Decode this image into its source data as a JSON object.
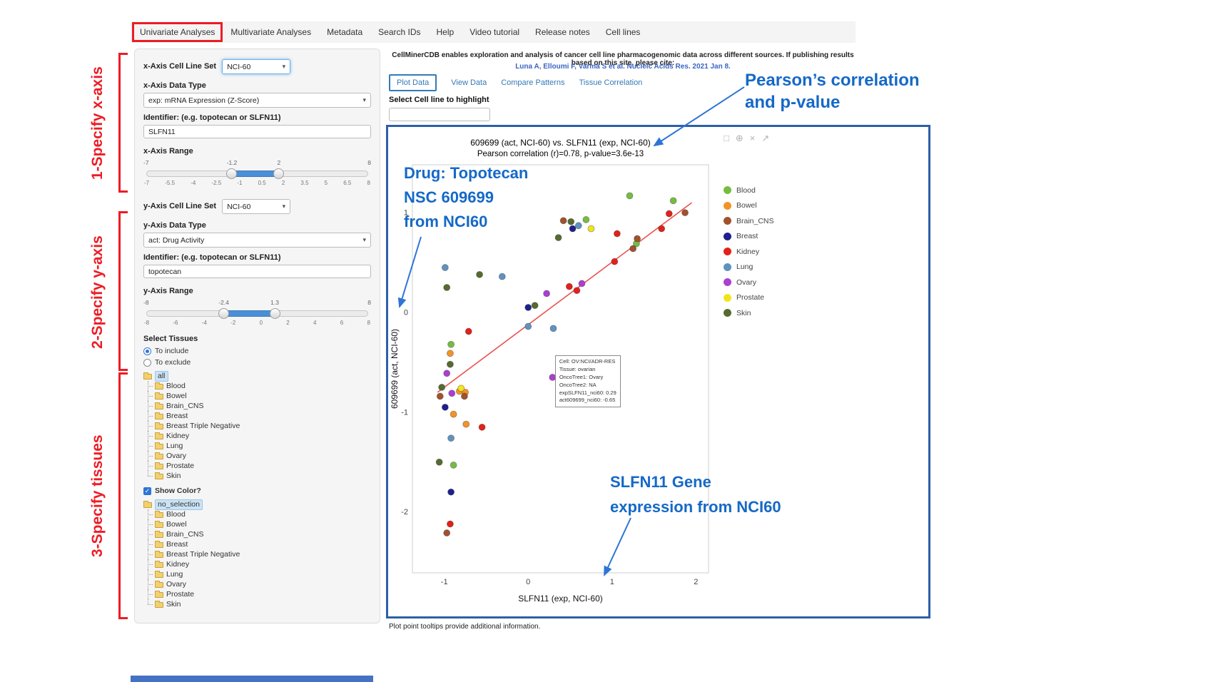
{
  "nav": {
    "tabs": [
      {
        "label": "Univariate Analyses",
        "active": true
      },
      {
        "label": "Multivariate Analyses",
        "active": false
      },
      {
        "label": "Metadata",
        "active": false
      },
      {
        "label": "Search IDs",
        "active": false
      },
      {
        "label": "Help",
        "active": false
      },
      {
        "label": "Video tutorial",
        "active": false
      },
      {
        "label": "Release notes",
        "active": false
      },
      {
        "label": "Cell lines",
        "active": false
      }
    ]
  },
  "side_annotations": {
    "step1": "1-Specify x-axis",
    "step2": "2-Specify y-axis",
    "step3": "3-Specify tissues"
  },
  "callouts": {
    "pearson_line1": "Pearson’s correlation",
    "pearson_line2": "and p-value",
    "drug_line1": "Drug: Topotecan",
    "drug_line2": "NSC 609699",
    "drug_line3": "from NCI60",
    "gene_line1": "SLFN11 Gene",
    "gene_line2": "expression from NCI60"
  },
  "sidebar": {
    "x_axis": {
      "set_label": "x-Axis Cell Line Set",
      "set_value": "NCI-60",
      "type_label": "x-Axis Data Type",
      "type_value": "exp: mRNA Expression (Z-Score)",
      "id_label": "Identifier: (e.g. topotecan or SLFN11)",
      "id_value": "SLFN11",
      "range_label": "x-Axis Range",
      "range": {
        "min": -7,
        "max": 8,
        "from": -1.2,
        "to": 2,
        "ticks": [
          "-7",
          "-5.5",
          "-4",
          "-2.5",
          "-1",
          "0.5",
          "2",
          "3.5",
          "5",
          "6.5",
          "8"
        ]
      }
    },
    "y_axis": {
      "set_label": "y-Axis Cell Line Set",
      "set_value": "NCI-60",
      "type_label": "y-Axis Data Type",
      "type_value": "act: Drug Activity",
      "id_label": "Identifier: (e.g. topotecan or SLFN11)",
      "id_value": "topotecan",
      "range_label": "y-Axis Range",
      "range": {
        "min": -8,
        "max": 8,
        "from": -2.4,
        "to": 1.3,
        "ticks": [
          "-8",
          "-6",
          "-4",
          "-2",
          "0",
          "2",
          "4",
          "6",
          "8"
        ]
      }
    },
    "tissues": {
      "label": "Select Tissues",
      "include_option": "To include",
      "exclude_option": "To exclude",
      "show_color_label": "Show Color?",
      "tree_include": {
        "root": "all",
        "items": [
          "Blood",
          "Bowel",
          "Brain_CNS",
          "Breast",
          "Breast Triple Negative",
          "Kidney",
          "Lung",
          "Ovary",
          "Prostate",
          "Skin"
        ]
      },
      "tree_exclude": {
        "root": "no_selection",
        "items": [
          "Blood",
          "Bowel",
          "Brain_CNS",
          "Breast",
          "Breast Triple Negative",
          "Kidney",
          "Lung",
          "Ovary",
          "Prostate",
          "Skin"
        ]
      }
    }
  },
  "main": {
    "citation": "CellMinerCDB enables exploration and analysis of cancer cell line pharmacogenomic data across different sources. If publishing results based on this site, please cite:",
    "citation_link": "Luna A, Elloumi F, Varma S et al. Nucleic Acids Res. 2021 Jan 8.",
    "tabs": [
      {
        "label": "Plot Data",
        "active": true
      },
      {
        "label": "View Data",
        "active": false
      },
      {
        "label": "Compare Patterns",
        "active": false
      },
      {
        "label": "Tissue Correlation",
        "active": false
      }
    ],
    "highlight_label": "Select Cell line to highlight",
    "highlight_value": "",
    "footer_note": "Plot point tooltips provide additional information."
  },
  "chart_data": {
    "type": "scatter",
    "title": "609699 (act, NCI-60) vs. SLFN11 (exp, NCI-60)",
    "subtitle": "Pearson correlation (r)=0.78, p-value=3.6e-13",
    "pearson_r": 0.78,
    "p_value": "3.6e-13",
    "xlabel": "SLFN11 (exp, NCI-60)",
    "ylabel": "609699 (act, NCI-60)",
    "xlim": [
      -1.38,
      2.15
    ],
    "ylim": [
      -2.61,
      1.48
    ],
    "xticks": [
      -1,
      0,
      1,
      2
    ],
    "yticks": [
      -2,
      -1,
      0,
      1
    ],
    "legend_position": "right",
    "grid": false,
    "trend_line": {
      "x1": -1.08,
      "y1": -0.8,
      "x2": 1.95,
      "y2": 1.1,
      "color": "#e8534f"
    },
    "series": [
      {
        "name": "Blood",
        "color": "#76bc43",
        "points": [
          [
            1.21,
            1.17
          ],
          [
            1.73,
            1.12
          ],
          [
            0.69,
            0.93
          ],
          [
            1.29,
            0.69
          ],
          [
            -0.92,
            -0.32
          ],
          [
            -0.89,
            -1.53
          ]
        ]
      },
      {
        "name": "Bowel",
        "color": "#f59227",
        "points": [
          [
            -0.93,
            -0.41
          ],
          [
            -0.82,
            -0.79
          ],
          [
            -0.75,
            -0.8
          ],
          [
            -0.89,
            -1.02
          ],
          [
            -0.74,
            -1.12
          ]
        ]
      },
      {
        "name": "Brain_CNS",
        "color": "#a0522d",
        "points": [
          [
            1.87,
            1.0
          ],
          [
            0.42,
            0.92
          ],
          [
            1.3,
            0.74
          ],
          [
            1.25,
            0.64
          ],
          [
            -1.05,
            -0.84
          ],
          [
            -0.76,
            -0.84
          ],
          [
            -0.97,
            -2.21
          ]
        ]
      },
      {
        "name": "Breast",
        "color": "#1f1f8f",
        "points": [
          [
            0.53,
            0.84
          ],
          [
            0.0,
            0.05
          ],
          [
            -0.99,
            -0.95
          ],
          [
            -0.92,
            -1.8
          ]
        ]
      },
      {
        "name": "Kidney",
        "color": "#e3211b",
        "points": [
          [
            1.68,
            0.99
          ],
          [
            1.59,
            0.84
          ],
          [
            1.06,
            0.79
          ],
          [
            1.03,
            0.51
          ],
          [
            0.49,
            0.26
          ],
          [
            0.58,
            0.22
          ],
          [
            -0.71,
            -0.19
          ],
          [
            -0.55,
            -1.15
          ],
          [
            -0.93,
            -2.12
          ]
        ]
      },
      {
        "name": "Lung",
        "color": "#5f93be",
        "points": [
          [
            0.6,
            0.87
          ],
          [
            -0.99,
            0.45
          ],
          [
            -0.31,
            0.36
          ],
          [
            0.0,
            -0.14
          ],
          [
            0.3,
            -0.16
          ],
          [
            -0.92,
            -1.26
          ]
        ]
      },
      {
        "name": "Ovary",
        "color": "#ab3fd1",
        "points": [
          [
            0.64,
            0.29
          ],
          [
            0.22,
            0.19
          ],
          [
            0.29,
            -0.65
          ],
          [
            -0.97,
            -0.61
          ],
          [
            -0.91,
            -0.81
          ]
        ]
      },
      {
        "name": "Prostate",
        "color": "#f2e41c",
        "points": [
          [
            0.75,
            0.84
          ],
          [
            -0.8,
            -0.76
          ]
        ]
      },
      {
        "name": "Skin",
        "color": "#556b2f",
        "points": [
          [
            0.51,
            0.91
          ],
          [
            0.36,
            0.75
          ],
          [
            -0.58,
            0.38
          ],
          [
            -0.97,
            0.25
          ],
          [
            0.08,
            0.07
          ],
          [
            -0.93,
            -0.52
          ],
          [
            -1.03,
            -0.75
          ],
          [
            -1.06,
            -1.5
          ]
        ]
      }
    ],
    "tooltip": {
      "x": 0.32,
      "y": -0.43,
      "lines": [
        "Cell: OV:NCI/ADR-RES",
        "Tissue: ovarian",
        "OncoTree1: Ovary",
        "OncoTree2: NA",
        "expSLFN11_nci60: 0.29",
        "act609699_nci60: -0.65"
      ]
    }
  }
}
